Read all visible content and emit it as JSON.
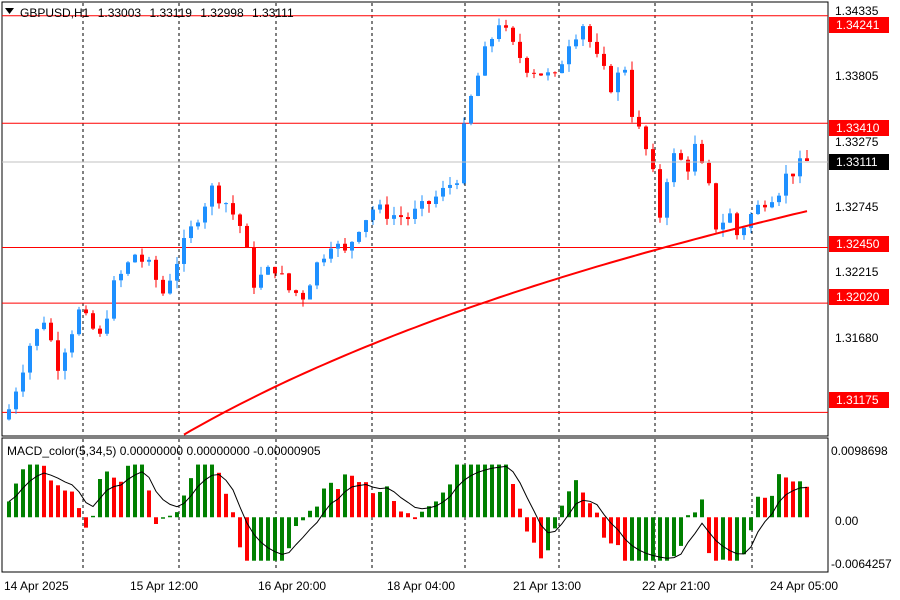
{
  "symbol_header": {
    "symbol": "GBPUSD,H1",
    "open": "1.33003",
    "high": "1.33119",
    "low": "1.32998",
    "close": "1.33111"
  },
  "price_axis": {
    "min": 1.31,
    "max": 1.3434,
    "ticks": [
      "1.34335",
      "1.33805",
      "1.33275",
      "1.32745",
      "1.32215",
      "1.31680"
    ]
  },
  "horizontal_levels": [
    {
      "label": "1.34241",
      "value": 1.34241
    },
    {
      "label": "1.33410",
      "value": 1.3341
    },
    {
      "label": "1.32450",
      "value": 1.3245
    },
    {
      "label": "1.32020",
      "value": 1.3202
    },
    {
      "label": "1.31175",
      "value": 1.31175
    }
  ],
  "current_price": {
    "label": "1.33111",
    "value": 1.33111
  },
  "time_axis": [
    "14 Apr 2025",
    "15 Apr 12:00",
    "16 Apr 20:00",
    "18 Apr 04:00",
    "21 Apr 13:00",
    "22 Apr 21:00",
    "24 Apr 05:00"
  ],
  "macd": {
    "title": "MACD_color(5,34,5) 0.00000000 0.00000000 -0.00000905",
    "ticks": [
      "0.0098698",
      "0.00",
      "-0.0064257"
    ],
    "max": 0.0098698,
    "min": -0.0064257
  },
  "colors": {
    "bull_candle": "#1e90ff",
    "bear_candle": "#ff0000",
    "level_line": "#ff0000",
    "moving_average": "#ff0000",
    "macd_up": "#008000",
    "macd_down": "#ff0000",
    "signal_line": "#000000",
    "tag_background": "#ff0000",
    "current_tag_background": "#000000"
  },
  "chart_data": {
    "type": "candlestick",
    "bars": 115,
    "close_path": [
      [
        0,
        1.312
      ],
      [
        3,
        1.317
      ],
      [
        5,
        1.319
      ],
      [
        7,
        1.3155
      ],
      [
        10,
        1.3195
      ],
      [
        13,
        1.3175
      ],
      [
        15,
        1.3215
      ],
      [
        18,
        1.324
      ],
      [
        20,
        1.323
      ],
      [
        22,
        1.321
      ],
      [
        24,
        1.3235
      ],
      [
        27,
        1.327
      ],
      [
        29,
        1.329
      ],
      [
        31,
        1.328
      ],
      [
        33,
        1.3262
      ],
      [
        35,
        1.3218
      ],
      [
        38,
        1.323
      ],
      [
        40,
        1.3212
      ],
      [
        42,
        1.3208
      ],
      [
        44,
        1.3232
      ],
      [
        46,
        1.325
      ],
      [
        48,
        1.324
      ],
      [
        50,
        1.3262
      ],
      [
        52,
        1.3275
      ],
      [
        55,
        1.327
      ],
      [
        57,
        1.3268
      ],
      [
        59,
        1.3275
      ],
      [
        62,
        1.3288
      ],
      [
        64,
        1.33
      ],
      [
        65,
        1.3335
      ],
      [
        66,
        1.336
      ],
      [
        68,
        1.3395
      ],
      [
        70,
        1.342
      ],
      [
        72,
        1.34
      ],
      [
        74,
        1.3385
      ],
      [
        76,
        1.338
      ],
      [
        78,
        1.3375
      ],
      [
        80,
        1.3405
      ],
      [
        82,
        1.3418
      ],
      [
        84,
        1.339
      ],
      [
        86,
        1.337
      ],
      [
        88,
        1.3385
      ],
      [
        89,
        1.335
      ],
      [
        91,
        1.332
      ],
      [
        92,
        1.33
      ],
      [
        93,
        1.327
      ],
      [
        94,
        1.33
      ],
      [
        95,
        1.3315
      ],
      [
        97,
        1.3308
      ],
      [
        98,
        1.3322
      ],
      [
        100,
        1.329
      ],
      [
        101,
        1.3262
      ],
      [
        103,
        1.327
      ],
      [
        104,
        1.3255
      ],
      [
        106,
        1.327
      ],
      [
        108,
        1.3282
      ],
      [
        110,
        1.329
      ],
      [
        111,
        1.33
      ],
      [
        113,
        1.3308
      ],
      [
        114,
        1.3311
      ]
    ]
  }
}
